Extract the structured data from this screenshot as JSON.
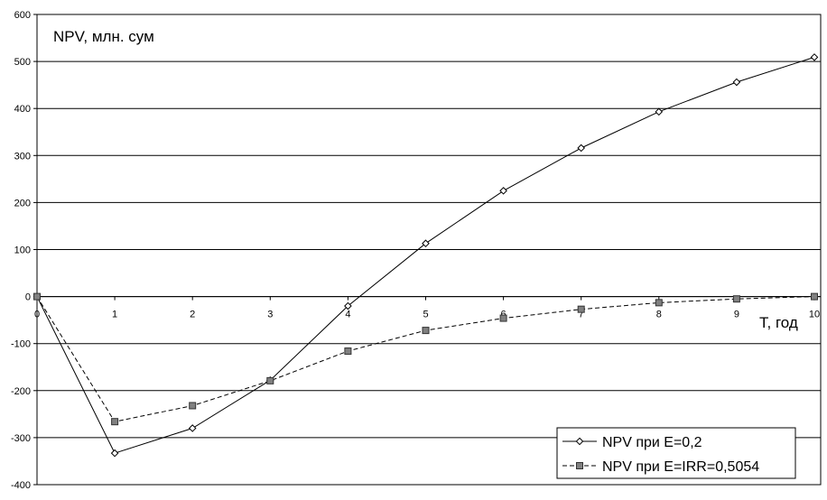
{
  "chart_data": {
    "type": "line",
    "ylabel": "NPV, млн. сум",
    "xlabel": "T, год",
    "x": [
      0,
      1,
      2,
      3,
      4,
      5,
      6,
      7,
      8,
      9,
      10
    ],
    "xticks": [
      "0",
      "1",
      "2",
      "3",
      "4",
      "5",
      "6",
      "7",
      "8",
      "9",
      "10"
    ],
    "yticks": [
      "-400",
      "-300",
      "-200",
      "-100",
      "0",
      "100",
      "200",
      "300",
      "400",
      "500",
      "600"
    ],
    "ylim": [
      -400,
      600
    ],
    "xlim": [
      0,
      10
    ],
    "grid": "horizontal",
    "legend_position": "bottom-right",
    "series": [
      {
        "name": "NPV при E=0,2",
        "values": [
          0,
          -333,
          -280,
          -178,
          -20,
          113,
          225,
          316,
          393,
          456,
          509
        ],
        "line_style": "solid",
        "marker": "diamond-open",
        "color": "#000000"
      },
      {
        "name": "NPV при E=IRR=0,5054",
        "values": [
          0,
          -266,
          -232,
          -179,
          -116,
          -72,
          -46,
          -27,
          -13,
          -5,
          0
        ],
        "line_style": "dashed",
        "marker": "square-filled",
        "color": "#000000",
        "marker_fill": "#808080"
      }
    ]
  }
}
